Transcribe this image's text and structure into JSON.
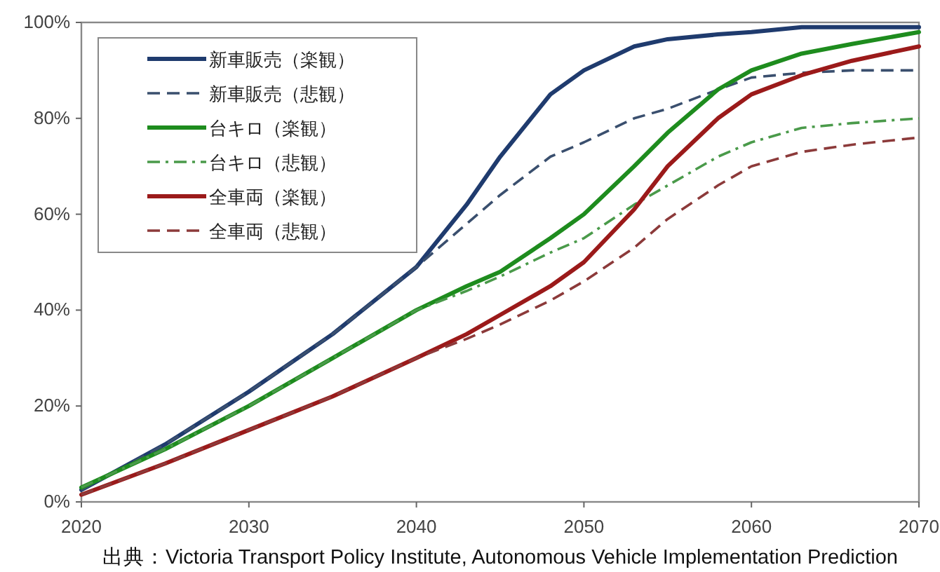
{
  "chart_data": {
    "type": "line",
    "x": [
      2020,
      2025,
      2030,
      2035,
      2040,
      2043,
      2045,
      2048,
      2050,
      2053,
      2055,
      2058,
      2060,
      2063,
      2066,
      2070
    ],
    "series": [
      {
        "name": "新車販売（楽観）",
        "color": "#1f3b6e",
        "line_style": "solid",
        "values": [
          2.5,
          12,
          23,
          35,
          49,
          62,
          72,
          85,
          90,
          95,
          96.5,
          97.5,
          98,
          99,
          99,
          99
        ]
      },
      {
        "name": "新車販売（悲観）",
        "color": "#3a4f6e",
        "line_style": "dashed",
        "values": [
          2.5,
          12,
          23,
          35,
          49,
          58,
          64,
          72,
          75,
          80,
          82,
          86,
          88.5,
          89.5,
          90,
          90
        ]
      },
      {
        "name": "台キロ（楽観）",
        "color": "#1e8c1e",
        "line_style": "solid",
        "values": [
          3,
          11,
          20,
          30,
          40,
          45,
          48,
          55,
          60,
          70,
          77,
          86,
          90,
          93.5,
          95.5,
          98
        ]
      },
      {
        "name": "台キロ（悲観）",
        "color": "#4a9a4a",
        "line_style": "dashdot",
        "values": [
          3,
          11,
          20,
          30,
          40,
          44,
          47,
          52,
          55,
          62,
          66,
          72,
          75,
          78,
          79,
          80
        ]
      },
      {
        "name": "全車両（楽観）",
        "color": "#9b1a1a",
        "line_style": "solid",
        "values": [
          1.5,
          8,
          15,
          22,
          30,
          35,
          39,
          45,
          50,
          61,
          70,
          80,
          85,
          89,
          92,
          95
        ]
      },
      {
        "name": "全車両（悲観）",
        "color": "#8c3a3a",
        "line_style": "dashed",
        "values": [
          1.5,
          8,
          15,
          22,
          30,
          34,
          37,
          42,
          46,
          53,
          59,
          66,
          70,
          73,
          74.5,
          76
        ]
      }
    ],
    "xlim": [
      2020,
      2070
    ],
    "xticks": [
      2020,
      2030,
      2040,
      2050,
      2060,
      2070
    ],
    "ylim": [
      0,
      100
    ],
    "yticks": [
      {
        "value": 0,
        "label": "0%"
      },
      {
        "value": 20,
        "label": "20%"
      },
      {
        "value": 40,
        "label": "40%"
      },
      {
        "value": 60,
        "label": "60%"
      },
      {
        "value": 80,
        "label": "80%"
      },
      {
        "value": 100,
        "label": "100%"
      }
    ],
    "legend": "top left",
    "grid": false,
    "annotations": [
      "出典：Victoria Transport Policy Institute, Autonomous Vehicle Implementation Prediction"
    ]
  }
}
